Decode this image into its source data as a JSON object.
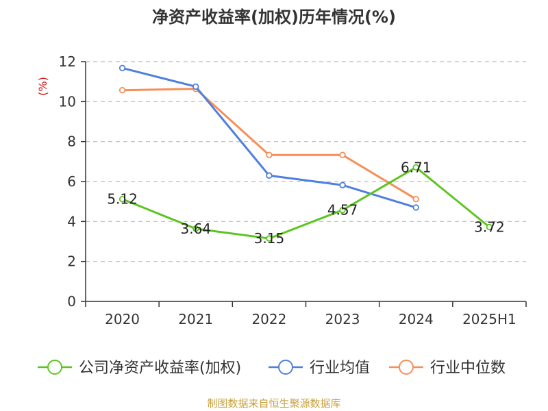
{
  "chart_data": {
    "type": "line",
    "title": "净资产收益率(加权)历年情况(%)",
    "ylabel": "(%)",
    "ylim": [
      0,
      12
    ],
    "yticks": [
      0,
      2,
      4,
      6,
      8,
      10,
      12
    ],
    "categories": [
      "2020",
      "2021",
      "2022",
      "2023",
      "2024",
      "2025H1"
    ],
    "grid": true,
    "legend_position": "bottom",
    "series": [
      {
        "name": "公司净资产收益率(加权)",
        "color": "#5cc520",
        "values": [
          5.12,
          3.64,
          3.15,
          4.57,
          6.71,
          3.72
        ],
        "labels": [
          "5.12",
          "3.64",
          "3.15",
          "4.57",
          "6.71",
          "3.72"
        ]
      },
      {
        "name": "行业均值",
        "color": "#4f7fde",
        "values": [
          11.68,
          10.75,
          6.3,
          5.82,
          4.7,
          null
        ]
      },
      {
        "name": "行业中位数",
        "color": "#f78e57",
        "values": [
          10.57,
          10.64,
          7.33,
          7.33,
          5.12,
          null
        ]
      }
    ]
  },
  "source": "制图数据来自恒生聚源数据库",
  "colors": {
    "axis": "#333333",
    "grid": "#bbbbbb",
    "ylabel": "#d01010",
    "source": "#c8a040"
  }
}
